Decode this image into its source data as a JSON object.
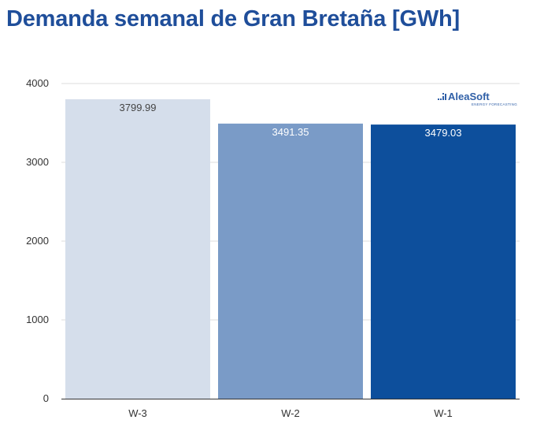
{
  "chart_data": {
    "type": "bar",
    "title": "Demanda semanal de Gran Bretaña [GWh]",
    "categories": [
      "W-3",
      "W-2",
      "W-1"
    ],
    "values": [
      3799.99,
      3491.35,
      3479.03
    ],
    "value_labels": [
      "3799.99",
      "3491.35",
      "3479.03"
    ],
    "bar_colors": [
      "#d5deeb",
      "#7a9bc7",
      "#0d4f9c"
    ],
    "label_colors": [
      "#444444",
      "#ffffff",
      "#ffffff"
    ],
    "ylim": [
      0,
      4000
    ],
    "yticks": [
      0,
      1000,
      2000,
      3000,
      4000
    ],
    "grid": true,
    "xlabel": "",
    "ylabel": ""
  },
  "watermark": {
    "name": "AleaSoft",
    "tagline": "ENERGY FORECASTING",
    "color": "#2f5fa7"
  }
}
